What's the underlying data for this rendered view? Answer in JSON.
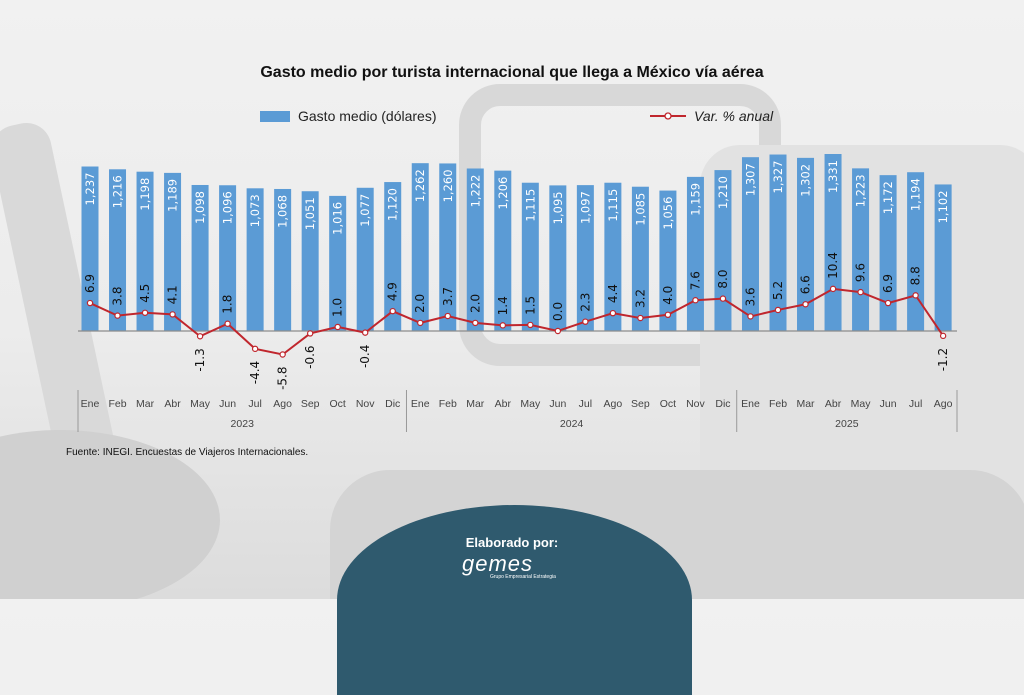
{
  "chart_data": {
    "type": "bar+line",
    "title": "Gasto medio por turista internacional que llega a México vía aérea",
    "categories": [
      "Ene",
      "Feb",
      "Mar",
      "Abr",
      "May",
      "Jun",
      "Jul",
      "Ago",
      "Sep",
      "Oct",
      "Nov",
      "Dic",
      "Ene",
      "Feb",
      "Mar",
      "Abr",
      "May",
      "Jun",
      "Jul",
      "Ago",
      "Sep",
      "Oct",
      "Nov",
      "Dic",
      "Ene",
      "Feb",
      "Mar",
      "Abr",
      "May",
      "Jun",
      "Jul",
      "Ago"
    ],
    "years": [
      {
        "label": "2023",
        "count": 12
      },
      {
        "label": "2024",
        "count": 12
      },
      {
        "label": "2025",
        "count": 8
      }
    ],
    "series": [
      {
        "name": "Gasto medio (dólares)",
        "type": "bar",
        "color": "#5b9bd5",
        "values": [
          1237,
          1216,
          1198,
          1189,
          1098,
          1096,
          1073,
          1068,
          1051,
          1016,
          1077,
          1120,
          1262,
          1260,
          1222,
          1206,
          1115,
          1095,
          1097,
          1115,
          1085,
          1056,
          1159,
          1210,
          1307,
          1327,
          1302,
          1331,
          1223,
          1172,
          1194,
          1102
        ],
        "labels": [
          "1,237",
          "1,216",
          "1,198",
          "1,189",
          "1,098",
          "1,096",
          "1,073",
          "1,068",
          "1,051",
          "1,016",
          "1,077",
          "1,120",
          "1,262",
          "1,260",
          "1,222",
          "1,206",
          "1,115",
          "1,095",
          "1,097",
          "1,115",
          "1,085",
          "1,056",
          "1,159",
          "1,210",
          "1,307",
          "1,327",
          "1,302",
          "1,331",
          "1,223",
          "1,172",
          "1,194",
          "1,102"
        ]
      },
      {
        "name": "Var. % anual",
        "type": "line",
        "color": "#c0262d",
        "values": [
          6.9,
          3.8,
          4.5,
          4.1,
          -1.3,
          1.8,
          -4.4,
          -5.8,
          -0.6,
          1.0,
          -0.4,
          4.9,
          2.0,
          3.7,
          2.0,
          1.4,
          1.5,
          0.0,
          2.3,
          4.4,
          3.2,
          4.0,
          7.6,
          8.0,
          3.6,
          5.2,
          6.6,
          10.4,
          9.6,
          6.9,
          8.8,
          -1.2
        ],
        "labels": [
          "6.9",
          "3.8",
          "4.5",
          "4.1",
          "-1.3",
          "1.8",
          "-4.4",
          "-5.8",
          "-0.6",
          "1.0",
          "-0.4",
          "4.9",
          "2.0",
          "3.7",
          "2.0",
          "1.4",
          "1.5",
          "0.0",
          "2.3",
          "4.4",
          "3.2",
          "4.0",
          "7.6",
          "8.0",
          "3.6",
          "5.2",
          "6.6",
          "10.4",
          "9.6",
          "6.9",
          "8.8",
          "-1.2"
        ]
      }
    ],
    "legend_position": "top",
    "grid": false
  },
  "legend": {
    "bar": "Gasto medio (dólares)",
    "line": "Var. % anual"
  },
  "source": "Fuente: INEGI. Encuestas de Viajeros Internacionales.",
  "footer": {
    "label": "Elaborado por:",
    "logo": "gemes",
    "logo_sub": "Grupo Empresarial Estrategia"
  }
}
